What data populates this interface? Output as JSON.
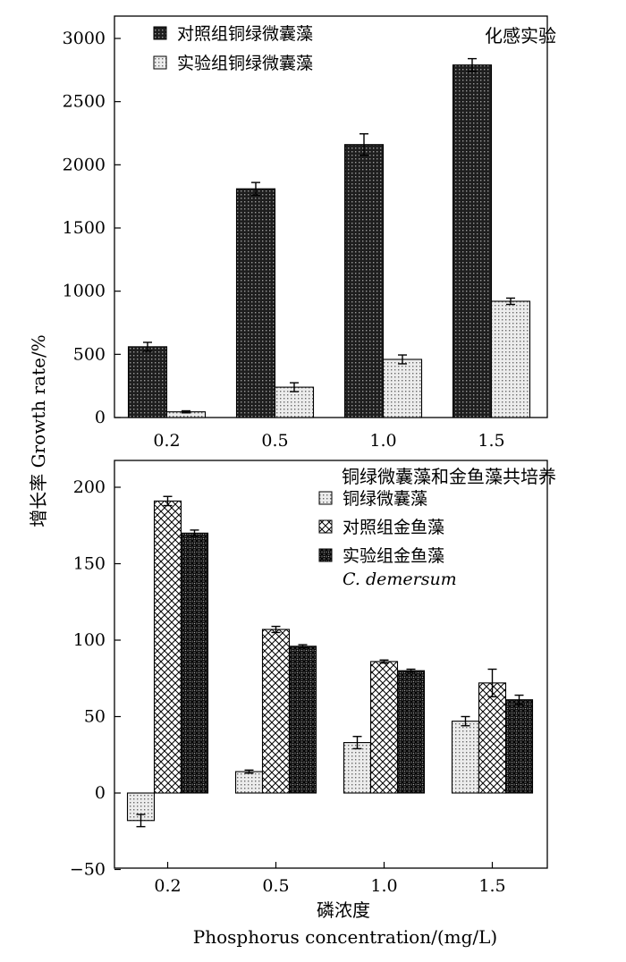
{
  "y_axis_label": "增长率 Growth rate/%",
  "x_axis_label_cn": "磷浓度",
  "x_axis_label_en": "Phosphorus concentration/(mg/L)",
  "chart_data": [
    {
      "type": "bar",
      "title": "化感实验",
      "categories": [
        "0.2",
        "0.5",
        "1.0",
        "1.5"
      ],
      "ylim": [
        0,
        3000
      ],
      "yticks": [
        0,
        500,
        1000,
        1500,
        2000,
        2500,
        3000
      ],
      "legend_position": "top-left",
      "series": [
        {
          "name": "对照组铜绿微囊藻",
          "pattern": "dark-dots",
          "values": [
            560,
            1810,
            2160,
            2790
          ],
          "errors": [
            35,
            50,
            85,
            50
          ]
        },
        {
          "name": "实验组铜绿微囊藻",
          "pattern": "light-dots",
          "values": [
            45,
            240,
            460,
            920
          ],
          "errors": [
            8,
            35,
            35,
            25
          ]
        }
      ]
    },
    {
      "type": "bar",
      "title": "铜绿微囊藻和金鱼藻共培养",
      "categories": [
        "0.2",
        "0.5",
        "1.0",
        "1.5"
      ],
      "ylim": [
        -50,
        220
      ],
      "yticks": [
        -50,
        0,
        50,
        100,
        150,
        200
      ],
      "legend_position": "top-right",
      "legend_note": "C. demersum",
      "series": [
        {
          "name": "铜绿微囊藻",
          "pattern": "light-dots",
          "values": [
            -18,
            14,
            33,
            47
          ],
          "errors": [
            4,
            1,
            4,
            3
          ]
        },
        {
          "name": "对照组金鱼藻",
          "pattern": "crosshatch",
          "values": [
            191,
            107,
            86,
            72
          ],
          "errors": [
            3,
            2,
            1,
            9
          ]
        },
        {
          "name": "实验组金鱼藻",
          "pattern": "dense-crosshatch",
          "values": [
            170,
            96,
            80,
            61
          ],
          "errors": [
            2,
            1,
            1,
            3
          ]
        }
      ]
    }
  ]
}
